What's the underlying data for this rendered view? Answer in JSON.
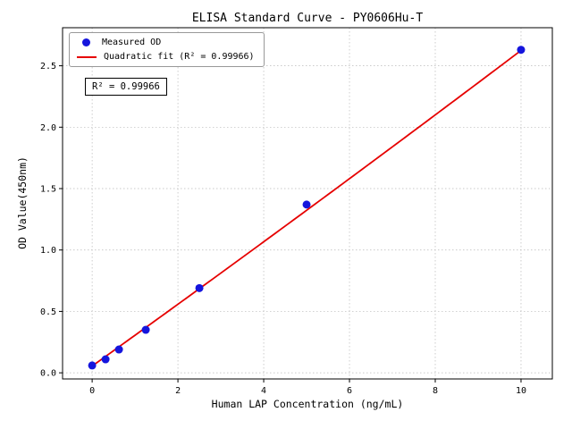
{
  "chart_data": {
    "type": "scatter",
    "title": "ELISA Standard Curve - PY0606Hu-T",
    "xlabel": "Human LAP Concentration (ng/mL)",
    "ylabel": "OD Value(450nm)",
    "xlim": [
      -0.69,
      10.73
    ],
    "ylim": [
      -0.05,
      2.81
    ],
    "x_ticks": [
      0,
      2,
      4,
      6,
      8,
      10
    ],
    "y_ticks": [
      0.0,
      0.5,
      1.0,
      1.5,
      2.0,
      2.5
    ],
    "grid": true,
    "legend_position": "upper-left",
    "series": [
      {
        "name": "Measured OD",
        "type": "scatter",
        "color": "#1515dd",
        "x": [
          0,
          0.3125,
          0.625,
          1.25,
          2.5,
          5,
          10
        ],
        "y": [
          0.06,
          0.11,
          0.19,
          0.35,
          0.69,
          1.37,
          2.63
        ]
      },
      {
        "name": "Quadratic fit (R² = 0.99966)",
        "type": "line",
        "color": "#e60000",
        "fit": {
          "a": 0.000667,
          "b": 0.2503,
          "c": 0.055,
          "x_range": [
            0,
            10
          ]
        }
      }
    ],
    "annotation": "R² = 0.99966",
    "r_squared": 0.99966
  },
  "style": {
    "grid_color": "#b8b8b8",
    "axis_color": "#000000",
    "background": "#ffffff"
  }
}
